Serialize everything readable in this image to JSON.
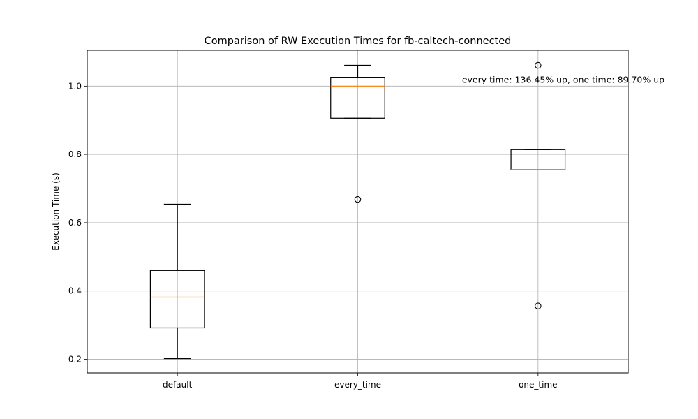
{
  "chart_data": {
    "type": "boxplot",
    "title": "Comparison of RW Execution Times for fb-caltech-connected",
    "xlabel": "",
    "ylabel": "Execution Time (s)",
    "ylim": [
      0.16,
      1.105
    ],
    "yticks": [
      0.2,
      0.4,
      0.6,
      0.8,
      1.0
    ],
    "ytick_labels": [
      "0.2",
      "0.4",
      "0.6",
      "0.8",
      "1.0"
    ],
    "grid": true,
    "categories": [
      "default",
      "every_time",
      "one_time"
    ],
    "boxes": [
      {
        "category": "default",
        "whislo": 0.202,
        "q1": 0.292,
        "median": 0.382,
        "q3": 0.46,
        "whishi": 0.654,
        "fliers": []
      },
      {
        "category": "every_time",
        "whislo": 0.906,
        "q1": 0.906,
        "median": 1.0,
        "q3": 1.026,
        "whishi": 1.061,
        "fliers": [
          0.668
        ]
      },
      {
        "category": "one_time",
        "whislo": 0.756,
        "q1": 0.756,
        "median": 0.756,
        "q3": 0.814,
        "whishi": 0.814,
        "fliers": [
          1.061,
          0.356
        ]
      }
    ],
    "colors": {
      "box": "#000000",
      "median": "#ff7f0e",
      "grid": "#b0b0b0"
    },
    "annotation": {
      "text": "every time: 136.45% up, one time: 89.70% up",
      "x": "one_time",
      "y": 1.0
    }
  }
}
